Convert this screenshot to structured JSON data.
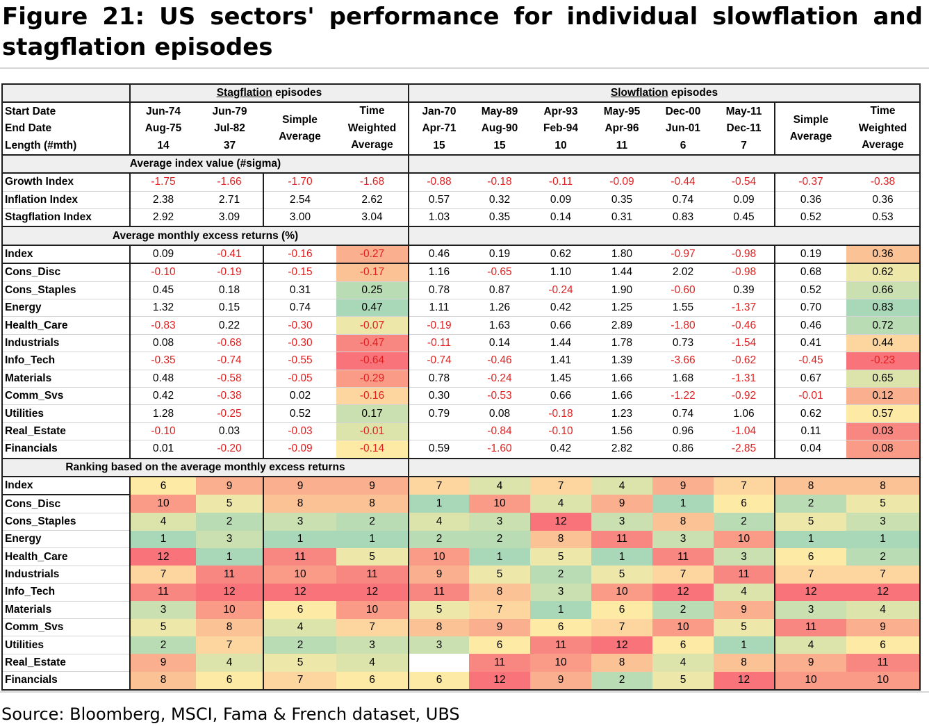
{
  "title": "Figure 21: US sectors' performance for individual slowflation and stagflation episodes",
  "source": "Source: Bloomberg, MSCI, Fama & French dataset, UBS",
  "header": {
    "stag_group": [
      "Stagflation",
      " episodes"
    ],
    "slow_group": [
      "Slowflation",
      " episodes"
    ],
    "row_labels": [
      "Start Date",
      "End Date",
      "Length (#mth)"
    ],
    "simple_average": [
      "Simple",
      "Average"
    ],
    "time_weighted_average": [
      "Time",
      "Weighted",
      "Average"
    ],
    "stag_episodes": [
      {
        "start": "Jun-74",
        "end": "Aug-75",
        "length": "14"
      },
      {
        "start": "Jun-79",
        "end": "Jul-82",
        "length": "37"
      }
    ],
    "slow_episodes": [
      {
        "start": "Jan-70",
        "end": "Apr-71",
        "length": "15"
      },
      {
        "start": "May-89",
        "end": "Aug-90",
        "length": "15"
      },
      {
        "start": "Apr-93",
        "end": "Feb-94",
        "length": "10"
      },
      {
        "start": "May-95",
        "end": "Apr-96",
        "length": "11"
      },
      {
        "start": "Dec-00",
        "end": "Jun-01",
        "length": "6"
      },
      {
        "start": "May-11",
        "end": "Dec-11",
        "length": "7"
      }
    ]
  },
  "sections": {
    "index_values": "Average index value (#sigma)",
    "excess_returns": "Average monthly excess returns (%)",
    "ranking": "Ranking based on the average monthly excess returns"
  },
  "index_values": [
    {
      "label": "Growth Index",
      "values": [
        "-1.75",
        "-1.66",
        "-1.70",
        "-1.68",
        "-0.88",
        "-0.18",
        "-0.11",
        "-0.09",
        "-0.44",
        "-0.54",
        "-0.37",
        "-0.38"
      ]
    },
    {
      "label": "Inflation Index",
      "values": [
        "2.38",
        "2.71",
        "2.54",
        "2.62",
        "0.57",
        "0.32",
        "0.09",
        "0.35",
        "0.74",
        "0.09",
        "0.36",
        "0.36"
      ]
    },
    {
      "label": "Stagflation Index",
      "values": [
        "2.92",
        "3.09",
        "3.00",
        "3.04",
        "1.03",
        "0.35",
        "0.14",
        "0.31",
        "0.83",
        "0.45",
        "0.52",
        "0.53"
      ]
    }
  ],
  "excess_returns": [
    {
      "label": "Index",
      "values": [
        "0.09",
        "-0.41",
        "-0.16",
        "-0.27",
        "0.46",
        "0.19",
        "0.62",
        "1.80",
        "-0.97",
        "-0.98",
        "0.19",
        "0.36"
      ]
    },
    {
      "label": "Cons_Disc",
      "values": [
        "-0.10",
        "-0.19",
        "-0.15",
        "-0.17",
        "1.16",
        "-0.65",
        "1.10",
        "1.44",
        "2.02",
        "-0.98",
        "0.68",
        "0.62"
      ]
    },
    {
      "label": "Cons_Staples",
      "values": [
        "0.45",
        "0.18",
        "0.31",
        "0.25",
        "0.78",
        "0.87",
        "-0.24",
        "1.90",
        "-0.60",
        "0.39",
        "0.52",
        "0.66"
      ]
    },
    {
      "label": "Energy",
      "values": [
        "1.32",
        "0.15",
        "0.74",
        "0.47",
        "1.11",
        "1.26",
        "0.42",
        "1.25",
        "1.55",
        "-1.37",
        "0.70",
        "0.83"
      ]
    },
    {
      "label": "Health_Care",
      "values": [
        "-0.83",
        "0.22",
        "-0.30",
        "-0.07",
        "-0.19",
        "1.63",
        "0.66",
        "2.89",
        "-1.80",
        "-0.46",
        "0.46",
        "0.72"
      ]
    },
    {
      "label": "Industrials",
      "values": [
        "0.08",
        "-0.68",
        "-0.30",
        "-0.47",
        "-0.11",
        "0.14",
        "1.44",
        "1.78",
        "0.73",
        "-1.54",
        "0.41",
        "0.44"
      ]
    },
    {
      "label": "Info_Tech",
      "values": [
        "-0.35",
        "-0.74",
        "-0.55",
        "-0.64",
        "-0.74",
        "-0.46",
        "1.41",
        "1.39",
        "-3.66",
        "-0.62",
        "-0.45",
        "-0.23"
      ]
    },
    {
      "label": "Materials",
      "values": [
        "0.48",
        "-0.58",
        "-0.05",
        "-0.29",
        "0.78",
        "-0.24",
        "1.45",
        "1.66",
        "1.68",
        "-1.31",
        "0.67",
        "0.65"
      ]
    },
    {
      "label": "Comm_Svs",
      "values": [
        "0.42",
        "-0.38",
        "0.02",
        "-0.16",
        "0.30",
        "-0.53",
        "0.66",
        "1.66",
        "-1.22",
        "-0.92",
        "-0.01",
        "0.12"
      ]
    },
    {
      "label": "Utilities",
      "values": [
        "1.28",
        "-0.25",
        "0.52",
        "0.17",
        "0.79",
        "0.08",
        "-0.18",
        "1.23",
        "0.74",
        "1.06",
        "0.62",
        "0.57"
      ]
    },
    {
      "label": "Real_Estate",
      "values": [
        "-0.10",
        "0.03",
        "-0.03",
        "-0.01",
        "",
        "-0.84",
        "-0.10",
        "1.56",
        "0.96",
        "-1.04",
        "0.11",
        "0.03"
      ]
    },
    {
      "label": "Financials",
      "values": [
        "0.01",
        "-0.20",
        "-0.09",
        "-0.14",
        "0.59",
        "-1.60",
        "0.42",
        "2.82",
        "0.86",
        "-2.85",
        "0.04",
        "0.08"
      ]
    }
  ],
  "ranking": [
    {
      "label": "Index",
      "values": [
        "6",
        "9",
        "9",
        "9",
        "7",
        "4",
        "7",
        "4",
        "9",
        "7",
        "8",
        "8"
      ]
    },
    {
      "label": "Cons_Disc",
      "values": [
        "10",
        "5",
        "8",
        "8",
        "1",
        "10",
        "4",
        "9",
        "1",
        "6",
        "2",
        "5"
      ]
    },
    {
      "label": "Cons_Staples",
      "values": [
        "4",
        "2",
        "3",
        "2",
        "4",
        "3",
        "12",
        "3",
        "8",
        "2",
        "5",
        "3"
      ]
    },
    {
      "label": "Energy",
      "values": [
        "1",
        "3",
        "1",
        "1",
        "2",
        "2",
        "8",
        "11",
        "3",
        "10",
        "1",
        "1"
      ]
    },
    {
      "label": "Health_Care",
      "values": [
        "12",
        "1",
        "11",
        "5",
        "10",
        "1",
        "5",
        "1",
        "11",
        "3",
        "6",
        "2"
      ]
    },
    {
      "label": "Industrials",
      "values": [
        "7",
        "11",
        "10",
        "11",
        "9",
        "5",
        "2",
        "5",
        "7",
        "11",
        "7",
        "7"
      ]
    },
    {
      "label": "Info_Tech",
      "values": [
        "11",
        "12",
        "12",
        "12",
        "11",
        "8",
        "3",
        "10",
        "12",
        "4",
        "12",
        "12"
      ]
    },
    {
      "label": "Materials",
      "values": [
        "3",
        "10",
        "6",
        "10",
        "5",
        "7",
        "1",
        "6",
        "2",
        "9",
        "3",
        "4"
      ]
    },
    {
      "label": "Comm_Svs",
      "values": [
        "5",
        "8",
        "4",
        "7",
        "8",
        "9",
        "6",
        "7",
        "10",
        "5",
        "11",
        "9"
      ]
    },
    {
      "label": "Utilities",
      "values": [
        "2",
        "7",
        "2",
        "3",
        "3",
        "6",
        "11",
        "12",
        "6",
        "1",
        "4",
        "6"
      ]
    },
    {
      "label": "Real_Estate",
      "values": [
        "9",
        "4",
        "5",
        "4",
        "",
        "11",
        "10",
        "8",
        "4",
        "8",
        "9",
        "11"
      ]
    },
    {
      "label": "Financials",
      "values": [
        "8",
        "6",
        "7",
        "6",
        "6",
        "12",
        "9",
        "2",
        "5",
        "12",
        "10",
        "10"
      ]
    }
  ],
  "heatmap_colors": {
    "rank_1": "#a9d8b8",
    "rank_6": "#fdeba5",
    "rank_12": "#f8737a",
    "negative_text": "#e02020"
  }
}
